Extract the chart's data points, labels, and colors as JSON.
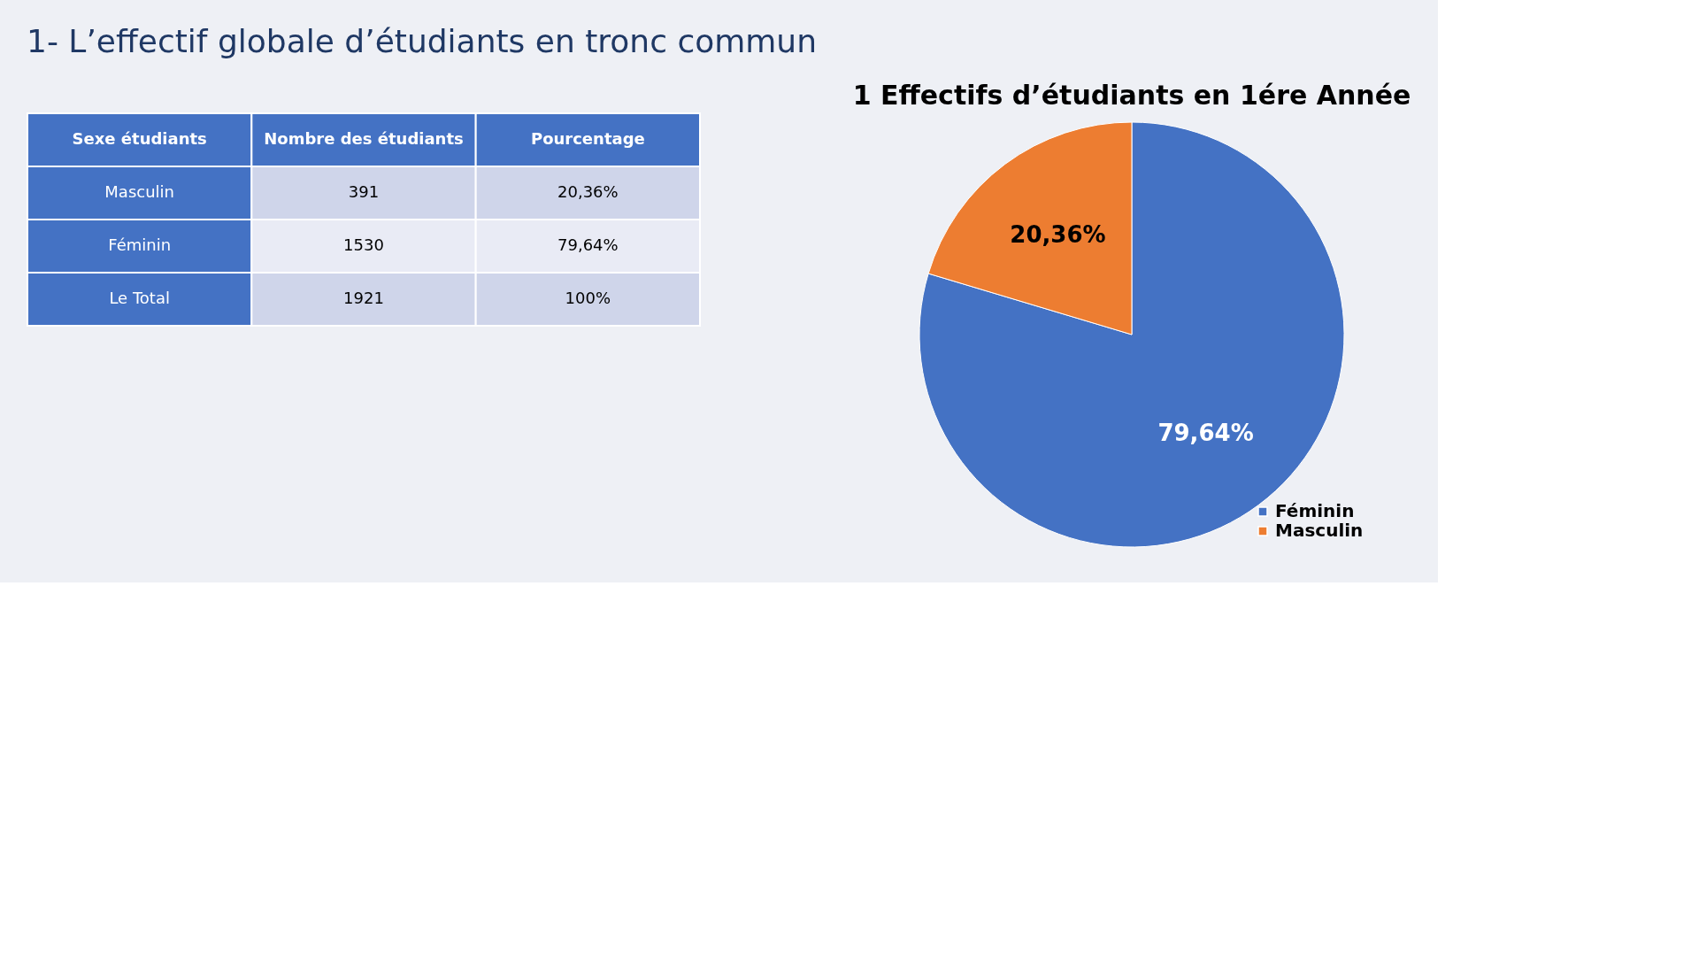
{
  "chart_data": [
    {
      "type": "other",
      "title": "1- L’effectif globale d’étudiants en tronc commun",
      "annotations": [
        "Sexe étudiants",
        "Nombre des étudiants",
        "Pourcentage",
        "Masculin",
        "391",
        "20,36%",
        "Féminin",
        "1530",
        "79,64%",
        "Le Total",
        "1921",
        "100%"
      ]
    },
    {
      "type": "pie",
      "title": "Effectifs d’étudiants en 1ére Année",
      "annotations": [
        "1"
      ],
      "categories": [
        "Féminin",
        "Masculin"
      ],
      "values": [
        79.64,
        20.36
      ],
      "colors": [
        "#4472c4",
        "#ed7d31"
      ],
      "value_labels": [
        "79,64%",
        "20,36%"
      ],
      "legend": "bottom right"
    }
  ]
}
